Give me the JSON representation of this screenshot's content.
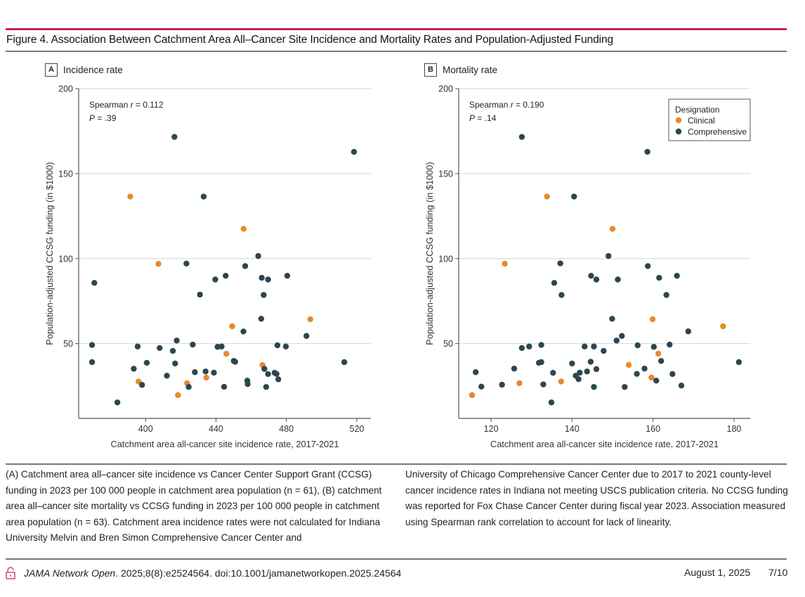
{
  "figure": {
    "title": "Figure 4. Association Between Catchment Area All–Cancer Site Incidence and Mortality Rates and Population-Adjusted Funding",
    "accent_color": "#c8215a"
  },
  "caption": {
    "left": "(A) Catchment area all–cancer site incidence vs Cancer Center Support Grant (CCSG) funding in 2023 per 100 000 people in catchment area population (n = 61), (B) catchment area all–cancer site mortality vs CCSG funding in 2023 per 100 000 people in catchment area population (n = 63). Catchment area incidence rates were not calculated for Indiana University Melvin and Bren Simon Comprehensive Cancer Center and",
    "right": "University of Chicago Comprehensive Cancer Center due to 2017 to 2021 county-level cancer incidence rates in Indiana not meeting USCS publication criteria. No CCSG funding was reported for Fox Chase Cancer Center during fiscal year 2023. Association measured using Spearman rank correlation to account for lack of linearity."
  },
  "footer": {
    "lock_icon": "open-access-lock-icon",
    "journal": "JAMA Network Open",
    "citation": ". 2025;8(8):e2524564. doi:10.1001/jamanetworkopen.2025.24564",
    "date": "August 1, 2025",
    "page": "7/10"
  },
  "chart_data": [
    {
      "type": "scatter",
      "panel_letter": "A",
      "title": "Incidence rate",
      "xlabel": "Catchment area all-cancer site incidence rate, 2017-2021",
      "ylabel": "Population-adjusted CCSG funding (in $1000)",
      "xlim": [
        362,
        528
      ],
      "ylim": [
        6,
        200
      ],
      "xticks": [
        400,
        440,
        480,
        520
      ],
      "yticks": [
        50,
        100,
        150,
        200
      ],
      "grid": "horizontal",
      "annotation": {
        "stat_prefix": "Spearman ",
        "stat_r": "r",
        "stat_value": " = 0.112",
        "p_label": "P",
        "p_value": " = .39"
      },
      "series": [
        {
          "name": "Clinical",
          "color": "#e8892e",
          "points": [
            [
              391.3,
              136.5
            ],
            [
              455.7,
              117.5
            ],
            [
              407.3,
              96.9
            ],
            [
              493.6,
              64.3
            ],
            [
              449.2,
              60.2
            ],
            [
              445.9,
              44.0
            ],
            [
              466.4,
              37.4
            ],
            [
              434.5,
              30.0
            ],
            [
              396.0,
              27.7
            ],
            [
              423.6,
              26.7
            ],
            [
              418.4,
              19.7
            ]
          ]
        },
        {
          "name": "Comprehensive",
          "color": "#2c4650",
          "points": [
            [
              416.4,
              171.6
            ],
            [
              518.4,
              162.8
            ],
            [
              433.0,
              136.5
            ],
            [
              464.0,
              101.5
            ],
            [
              423.2,
              97.1
            ],
            [
              456.6,
              95.6
            ],
            [
              445.5,
              89.9
            ],
            [
              480.5,
              89.9
            ],
            [
              466.0,
              88.7
            ],
            [
              439.6,
              87.7
            ],
            [
              469.6,
              87.7
            ],
            [
              370.9,
              85.7
            ],
            [
              430.9,
              78.8
            ],
            [
              467.1,
              78.6
            ],
            [
              465.7,
              64.6
            ],
            [
              455.6,
              57.1
            ],
            [
              491.4,
              54.5
            ],
            [
              417.7,
              51.8
            ],
            [
              426.8,
              49.4
            ],
            [
              369.6,
              49.2
            ],
            [
              474.9,
              49.0
            ],
            [
              395.5,
              48.3
            ],
            [
              443.2,
              48.3
            ],
            [
              479.7,
              48.3
            ],
            [
              440.9,
              48.1
            ],
            [
              408.0,
              47.4
            ],
            [
              415.5,
              45.7
            ],
            [
              450.1,
              39.8
            ],
            [
              450.9,
              39.3
            ],
            [
              369.6,
              39.1
            ],
            [
              512.9,
              39.1
            ],
            [
              400.7,
              38.7
            ],
            [
              416.8,
              38.3
            ],
            [
              393.3,
              35.2
            ],
            [
              467.5,
              35.1
            ],
            [
              434.1,
              33.6
            ],
            [
              428.0,
              33.2
            ],
            [
              438.8,
              32.9
            ],
            [
              473.3,
              32.8
            ],
            [
              474.4,
              32.2
            ],
            [
              469.6,
              32.1
            ],
            [
              412.1,
              31.1
            ],
            [
              475.4,
              29.0
            ],
            [
              457.8,
              28.2
            ],
            [
              458.0,
              26.2
            ],
            [
              398.0,
              25.7
            ],
            [
              444.6,
              24.6
            ],
            [
              424.5,
              24.5
            ],
            [
              468.5,
              24.5
            ],
            [
              384.0,
              15.4
            ]
          ]
        }
      ]
    },
    {
      "type": "scatter",
      "panel_letter": "B",
      "title": "Mortality rate",
      "xlabel": "Catchment area all-cancer site incidence rate, 2017-2021",
      "ylabel": "Population-adjusted CCSG funding (in $1000)",
      "xlim": [
        112,
        184
      ],
      "ylim": [
        6,
        200
      ],
      "xticks": [
        120,
        140,
        160,
        180
      ],
      "yticks": [
        50,
        100,
        150,
        200
      ],
      "grid": "horizontal",
      "annotation": {
        "stat_prefix": "Spearman ",
        "stat_r": "r",
        "stat_value": " = 0.190",
        "p_label": "P",
        "p_value": " = .14"
      },
      "legend": {
        "title": "Designation",
        "position": "top-right",
        "items": [
          "Clinical",
          "Comprehensive"
        ]
      },
      "series": [
        {
          "name": "Clinical",
          "color": "#e8892e",
          "points": [
            [
              133.8,
              136.5
            ],
            [
              150.0,
              117.5
            ],
            [
              123.4,
              97.0
            ],
            [
              159.9,
              64.3
            ],
            [
              177.3,
              60.2
            ],
            [
              161.3,
              44.1
            ],
            [
              154.0,
              37.5
            ],
            [
              159.6,
              30.0
            ],
            [
              137.3,
              27.7
            ],
            [
              127.0,
              26.7
            ],
            [
              115.3,
              19.7
            ]
          ]
        },
        {
          "name": "Comprehensive",
          "color": "#2c4650",
          "points": [
            [
              127.6,
              171.6
            ],
            [
              158.6,
              162.8
            ],
            [
              140.5,
              136.5
            ],
            [
              149.0,
              101.5
            ],
            [
              137.1,
              97.2
            ],
            [
              158.7,
              95.6
            ],
            [
              144.7,
              89.9
            ],
            [
              165.9,
              89.9
            ],
            [
              161.5,
              88.7
            ],
            [
              146.0,
              87.7
            ],
            [
              151.3,
              87.7
            ],
            [
              135.6,
              85.7
            ],
            [
              137.4,
              78.6
            ],
            [
              163.3,
              78.6
            ],
            [
              149.9,
              64.6
            ],
            [
              168.7,
              57.2
            ],
            [
              152.3,
              54.5
            ],
            [
              151.0,
              51.8
            ],
            [
              164.1,
              49.4
            ],
            [
              132.4,
              49.2
            ],
            [
              156.2,
              49.0
            ],
            [
              129.4,
              48.3
            ],
            [
              143.1,
              48.3
            ],
            [
              145.4,
              48.3
            ],
            [
              160.2,
              48.1
            ],
            [
              127.6,
              47.4
            ],
            [
              147.8,
              45.7
            ],
            [
              162.0,
              39.8
            ],
            [
              144.6,
              39.3
            ],
            [
              132.4,
              39.1
            ],
            [
              181.2,
              39.1
            ],
            [
              131.8,
              38.7
            ],
            [
              140.0,
              38.3
            ],
            [
              125.7,
              35.3
            ],
            [
              157.9,
              35.3
            ],
            [
              146.0,
              35.0
            ],
            [
              143.7,
              33.6
            ],
            [
              116.2,
              33.2
            ],
            [
              141.9,
              32.9
            ],
            [
              135.3,
              32.8
            ],
            [
              156.0,
              32.2
            ],
            [
              164.8,
              32.1
            ],
            [
              140.9,
              31.1
            ],
            [
              141.6,
              29.1
            ],
            [
              160.8,
              28.2
            ],
            [
              132.9,
              26.0
            ],
            [
              122.7,
              25.8
            ],
            [
              167.0,
              25.3
            ],
            [
              117.6,
              24.7
            ],
            [
              145.4,
              24.5
            ],
            [
              153.0,
              24.5
            ],
            [
              134.9,
              15.4
            ]
          ]
        }
      ]
    }
  ]
}
